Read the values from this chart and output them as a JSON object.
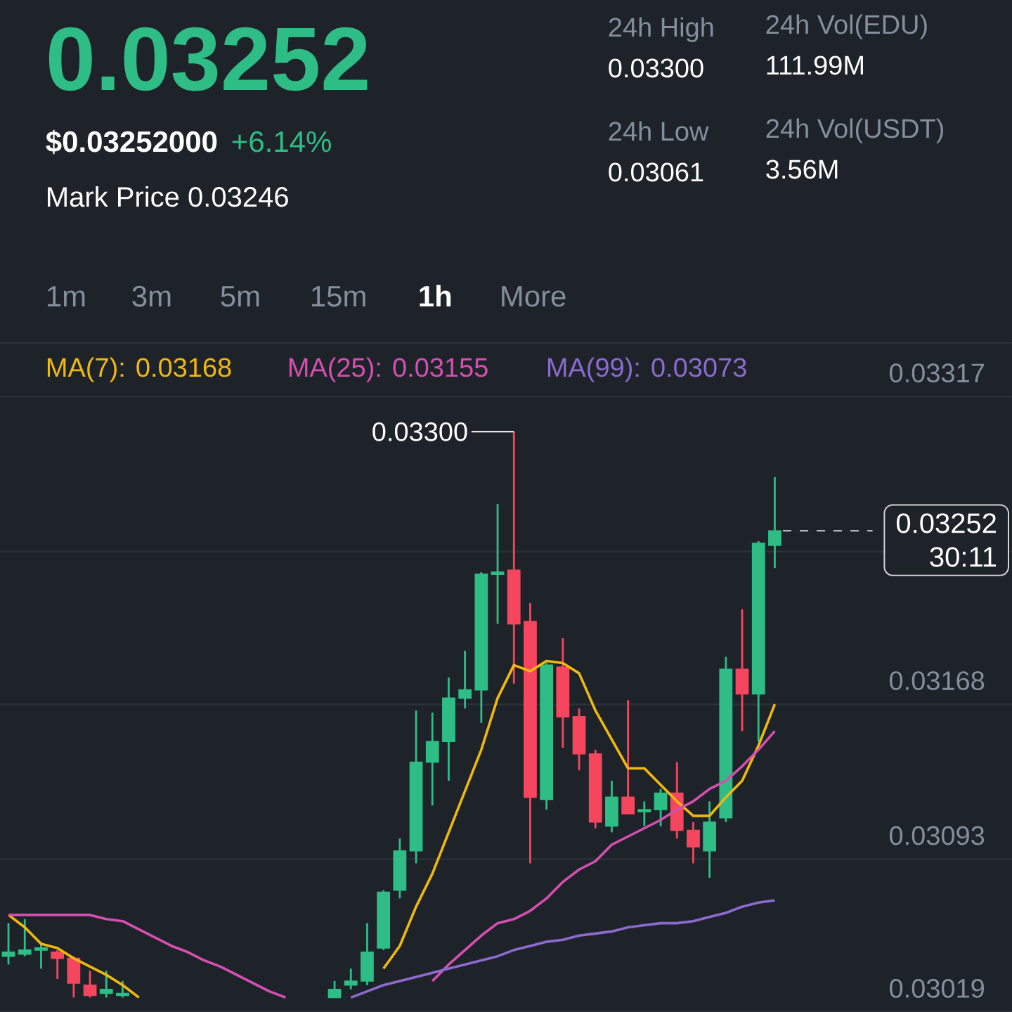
{
  "chart_data": {
    "type": "candlestick",
    "title": "0.03252",
    "subtitle": "$0.03252000",
    "categories": [
      null,
      null,
      null,
      null,
      null,
      null,
      null,
      null,
      null,
      null,
      null,
      null,
      null,
      null,
      null,
      null,
      null,
      null,
      null,
      null,
      null,
      null,
      null,
      null,
      null,
      null,
      null,
      null,
      null,
      null,
      null,
      null,
      null,
      null,
      null,
      null,
      null,
      null,
      null,
      null,
      null,
      null,
      null,
      null,
      null,
      null,
      null,
      null
    ],
    "ohlc": [
      [
        0.03046,
        0.03062,
        0.03042,
        0.03048
      ],
      [
        0.03047,
        0.03064,
        0.03046,
        0.03049
      ],
      [
        0.03049,
        0.03053,
        0.0304,
        0.0305
      ],
      [
        0.03048,
        0.03049,
        0.03035,
        0.03045
      ],
      [
        0.03045,
        0.03046,
        0.03026,
        0.03033
      ],
      [
        0.03032,
        0.03039,
        0.03026,
        0.03027
      ],
      [
        0.03028,
        0.03039,
        0.03026,
        0.0303
      ],
      [
        0.03027,
        0.03034,
        0.03026,
        0.03028
      ],
      null,
      null,
      null,
      null,
      null,
      null,
      null,
      null,
      null,
      null,
      null,
      null,
      [
        0.03026,
        0.03034,
        0.03026,
        0.0303
      ],
      [
        0.03032,
        0.0304,
        0.0303,
        0.03034
      ],
      [
        0.03034,
        0.03062,
        0.03032,
        0.03048
      ],
      [
        0.0305,
        0.03078,
        0.03049,
        0.03077
      ],
      [
        0.03078,
        0.03103,
        0.03074,
        0.03097
      ],
      [
        0.03097,
        0.03165,
        0.03091,
        0.0314
      ],
      [
        0.0314,
        0.03164,
        0.03119,
        0.0315
      ],
      [
        0.0315,
        0.03181,
        0.03131,
        0.03171
      ],
      [
        0.03171,
        0.03194,
        0.03166,
        0.03175
      ],
      [
        0.03175,
        0.03232,
        0.03159,
        0.03231
      ],
      [
        0.03231,
        0.03265,
        0.03207,
        0.03232
      ],
      [
        0.03233,
        0.033,
        0.03178,
        0.03207
      ],
      [
        0.03208,
        0.03217,
        0.03091,
        0.03123
      ],
      [
        0.03122,
        0.03188,
        0.03117,
        0.03187
      ],
      [
        0.03186,
        0.032,
        0.03147,
        0.03162
      ],
      [
        0.03162,
        0.03166,
        0.03136,
        0.03144
      ],
      [
        0.03144,
        0.03146,
        0.03108,
        0.03111
      ],
      [
        0.03109,
        0.03131,
        0.03106,
        0.03123
      ],
      [
        0.03123,
        0.0317,
        0.03115,
        0.03115
      ],
      [
        0.03116,
        0.03121,
        0.03109,
        0.03117
      ],
      [
        0.03117,
        0.03127,
        0.03109,
        0.03125
      ],
      [
        0.03125,
        0.0314,
        0.03103,
        0.03107
      ],
      [
        0.03107,
        0.03111,
        0.03091,
        0.03099
      ],
      [
        0.03097,
        0.03121,
        0.03084,
        0.03111
      ],
      [
        0.03113,
        0.03191,
        0.03111,
        0.03185
      ],
      [
        0.03185,
        0.03214,
        0.03155,
        0.03173
      ],
      [
        0.03173,
        0.03247,
        0.0315,
        0.03246
      ],
      [
        0.03245,
        0.03278,
        0.03234,
        0.03252
      ]
    ],
    "series": [
      {
        "type": "line",
        "name": "MA(7): 0.03168",
        "color": "#f0b90b",
        "values": [
          0.03066,
          0.0306,
          0.03052,
          0.0305,
          0.03045,
          0.03041,
          0.03037,
          0.03032,
          0.03026,
          null,
          null,
          null,
          null,
          null,
          null,
          null,
          null,
          null,
          null,
          null,
          null,
          null,
          null,
          0.0304,
          0.03051,
          0.0307,
          0.03086,
          0.03106,
          0.03126,
          0.03146,
          0.03171,
          0.03187,
          0.03184,
          0.03189,
          0.03188,
          0.03183,
          0.03165,
          0.03151,
          0.03137,
          0.03137,
          0.03129,
          0.03121,
          0.03114,
          0.03114,
          0.03123,
          0.03131,
          0.03148,
          0.03168
        ]
      },
      {
        "type": "line",
        "name": "MA(25): 0.03155",
        "color": "#d64fb0",
        "values": [
          0.03066,
          0.03066,
          0.03066,
          0.03066,
          0.03066,
          0.03066,
          0.03064,
          0.03063,
          0.03059,
          0.03055,
          0.03051,
          0.03048,
          0.03044,
          0.03041,
          0.03037,
          0.03033,
          0.03029,
          0.03026,
          null,
          null,
          null,
          null,
          null,
          null,
          null,
          null,
          0.03034,
          0.03042,
          0.03049,
          0.03056,
          0.03062,
          0.03064,
          0.03068,
          0.03074,
          0.03082,
          0.03088,
          0.03092,
          0.031,
          0.03104,
          0.03108,
          0.03112,
          0.03117,
          0.03121,
          0.03127,
          0.03131,
          0.03138,
          0.03146,
          0.03155
        ]
      },
      {
        "type": "line",
        "name": "MA(99): 0.03073",
        "color": "#8c6bd0",
        "values": [
          null,
          null,
          null,
          null,
          null,
          null,
          null,
          null,
          null,
          null,
          null,
          null,
          null,
          null,
          null,
          null,
          null,
          null,
          null,
          null,
          null,
          0.03026,
          0.03029,
          0.03032,
          0.03034,
          0.03036,
          0.03038,
          0.0304,
          0.03042,
          0.03044,
          0.03046,
          0.03049,
          0.03051,
          0.03053,
          0.03054,
          0.03056,
          0.03057,
          0.03058,
          0.0306,
          0.03061,
          0.03062,
          0.03062,
          0.03063,
          0.03065,
          0.03067,
          0.0307,
          0.03072,
          0.03073
        ]
      }
    ],
    "ylim": [
      0.03019,
      0.03343
    ],
    "yticks": [
      {
        "value": 0.03019,
        "label": "0.03019"
      },
      {
        "value": 0.03093,
        "label": "0.03093"
      },
      {
        "value": 0.03168,
        "label": "0.03168"
      },
      {
        "value": 0.03242,
        "label": null
      },
      {
        "value": 0.03317,
        "label": "0.03317"
      }
    ],
    "grid": "y",
    "legend": "top",
    "ref_lines": [
      {
        "axis": "y",
        "value": 0.03252,
        "label": "0.03252",
        "line_style": "dashed"
      }
    ],
    "annotations": [
      "0.03300",
      "30:11",
      "+6.14%",
      "Mark Price 0.03246",
      "24h High",
      "0.03300",
      "24h Vol(EDU)",
      "111.99M",
      "24h Low",
      "0.03061",
      "24h Vol(USDT)",
      "3.56M",
      "1m",
      "3m",
      "5m",
      "15m",
      "1h",
      "More"
    ]
  }
}
